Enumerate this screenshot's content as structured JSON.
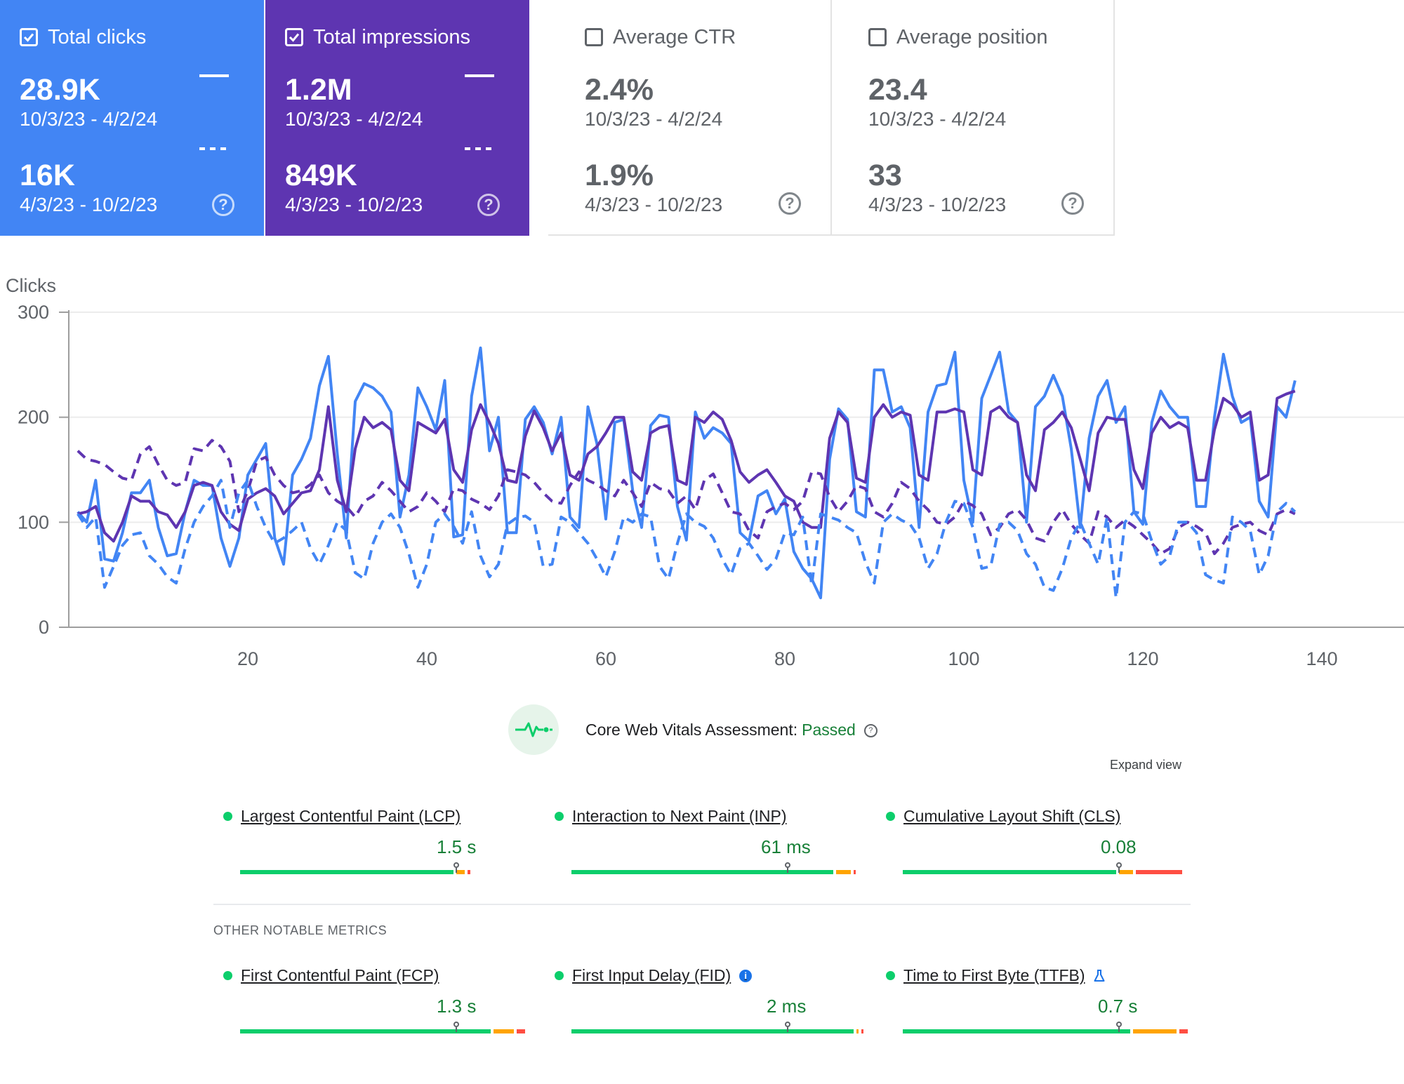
{
  "cards": [
    {
      "label": "Total clicks",
      "selected": true,
      "color": "#4285f4",
      "value_current": "28.9K",
      "range_current": "10/3/23 - 4/2/24",
      "value_previous": "16K",
      "range_previous": "4/3/23 - 10/2/23"
    },
    {
      "label": "Total impressions",
      "selected": true,
      "color": "#5e35b1",
      "value_current": "1.2M",
      "range_current": "10/3/23 - 4/2/24",
      "value_previous": "849K",
      "range_previous": "4/3/23 - 10/2/23"
    },
    {
      "label": "Average CTR",
      "selected": false,
      "color": "#ffffff",
      "value_current": "2.4%",
      "range_current": "10/3/23 - 4/2/24",
      "value_previous": "1.9%",
      "range_previous": "4/3/23 - 10/2/23"
    },
    {
      "label": "Average position",
      "selected": false,
      "color": "#ffffff",
      "value_current": "23.4",
      "range_current": "10/3/23 - 4/2/24",
      "value_previous": "33",
      "range_previous": "4/3/23 - 10/2/23"
    }
  ],
  "chart_data": {
    "type": "line",
    "ylabel": "Clicks",
    "ylim": [
      0,
      300
    ],
    "yticks": [
      0,
      100,
      200,
      300
    ],
    "xticks": [
      20,
      40,
      60,
      80,
      100,
      120,
      140
    ],
    "xlim": [
      0,
      150
    ],
    "grid": true,
    "series": [
      {
        "color": "#4285f4",
        "style": "solid",
        "values": [
          110,
          100,
          140,
          65,
          63,
          90,
          128,
          128,
          140,
          95,
          68,
          70,
          110,
          140,
          135,
          135,
          85,
          58,
          85,
          145,
          160,
          175,
          85,
          60,
          145,
          160,
          180,
          230,
          258,
          165,
          85,
          215,
          232,
          228,
          220,
          205,
          105,
          145,
          228,
          210,
          188,
          235,
          86,
          88,
          220,
          266,
          168,
          200,
          90,
          90,
          198,
          210,
          195,
          165,
          200,
          105,
          95,
          210,
          175,
          103,
          195,
          198,
          130,
          95,
          192,
          202,
          200,
          115,
          83,
          205,
          180,
          190,
          185,
          175,
          90,
          82,
          125,
          130,
          108,
          122,
          72,
          56,
          46,
          28,
          160,
          208,
          198,
          110,
          105,
          245,
          245,
          205,
          210,
          190,
          95,
          205,
          230,
          232,
          262,
          140,
          100,
          218,
          240,
          262,
          205,
          195,
          100,
          210,
          220,
          240,
          220,
          170,
          95,
          180,
          220,
          235,
          195,
          210,
          110,
          98,
          195,
          225,
          210,
          200,
          200,
          115,
          115,
          200,
          260,
          220,
          195,
          200,
          120,
          105,
          210,
          200,
          235
        ]
      },
      {
        "color": "#5e35b1",
        "style": "solid",
        "values": [
          108,
          110,
          115,
          90,
          82,
          100,
          125,
          120,
          120,
          110,
          107,
          95,
          110,
          135,
          138,
          135,
          110,
          98,
          92,
          122,
          128,
          132,
          125,
          108,
          118,
          128,
          130,
          150,
          210,
          140,
          110,
          170,
          200,
          190,
          195,
          188,
          140,
          130,
          195,
          190,
          185,
          198,
          150,
          138,
          188,
          212,
          195,
          175,
          140,
          138,
          182,
          206,
          190,
          168,
          185,
          145,
          140,
          165,
          172,
          185,
          200,
          200,
          148,
          140,
          185,
          190,
          192,
          140,
          136,
          200,
          195,
          205,
          198,
          178,
          148,
          138,
          145,
          150,
          138,
          125,
          120,
          100,
          95,
          95,
          180,
          205,
          195,
          142,
          138,
          200,
          212,
          200,
          205,
          202,
          145,
          140,
          205,
          205,
          208,
          205,
          150,
          145,
          205,
          210,
          200,
          195,
          145,
          130,
          188,
          195,
          205,
          190,
          160,
          130,
          185,
          200,
          198,
          198,
          150,
          132,
          185,
          200,
          190,
          195,
          190,
          140,
          140,
          188,
          218,
          212,
          200,
          205,
          140,
          145,
          218,
          222,
          225
        ]
      },
      {
        "color": "#5e35b1",
        "style": "dashed",
        "values": [
          168,
          160,
          158,
          155,
          148,
          142,
          140,
          165,
          172,
          155,
          140,
          135,
          138,
          170,
          168,
          178,
          172,
          158,
          110,
          130,
          158,
          162,
          145,
          135,
          128,
          130,
          136,
          145,
          128,
          120,
          115,
          105,
          120,
          125,
          138,
          130,
          120,
          110,
          115,
          128,
          120,
          110,
          132,
          130,
          122,
          118,
          112,
          125,
          150,
          148,
          145,
          138,
          128,
          120,
          118,
          135,
          148,
          140,
          136,
          130,
          125,
          140,
          128,
          115,
          138,
          132,
          130,
          118,
          125,
          112,
          140,
          146,
          128,
          110,
          108,
          92,
          85,
          110,
          115,
          118,
          112,
          120,
          148,
          146,
          124,
          110,
          120,
          135,
          132,
          110,
          105,
          118,
          138,
          132,
          120,
          112,
          100,
          98,
          105,
          120,
          116,
          108,
          88,
          95,
          108,
          112,
          102,
          85,
          82,
          100,
          112,
          98,
          88,
          80,
          110,
          105,
          95,
          102,
          96,
          88,
          80,
          70,
          75,
          95,
          100,
          96,
          90,
          70,
          80,
          95,
          98,
          100,
          92,
          88,
          108,
          112,
          108
        ]
      },
      {
        "color": "#4285f4",
        "style": "dashed",
        "values": [
          108,
          95,
          105,
          38,
          58,
          78,
          88,
          90,
          68,
          60,
          48,
          42,
          75,
          100,
          115,
          125,
          140,
          95,
          128,
          140,
          115,
          95,
          80,
          85,
          92,
          100,
          75,
          60,
          78,
          100,
          92,
          52,
          46,
          80,
          100,
          108,
          95,
          70,
          38,
          60,
          100,
          108,
          96,
          80,
          110,
          68,
          48,
          60,
          98,
          104,
          106,
          100,
          58,
          60,
          105,
          100,
          90,
          80,
          65,
          48,
          72,
          105,
          100,
          108,
          105,
          58,
          46,
          80,
          108,
          100,
          96,
          85,
          65,
          50,
          75,
          80,
          68,
          55,
          65,
          90,
          88,
          105,
          40,
          108,
          105,
          102,
          95,
          90,
          62,
          42,
          100,
          108,
          102,
          98,
          85,
          56,
          70,
          100,
          120,
          118,
          95,
          56,
          58,
          98,
          100,
          92,
          70,
          60,
          38,
          35,
          56,
          85,
          100,
          80,
          60,
          105,
          28,
          100,
          110,
          108,
          82,
          60,
          68,
          100,
          100,
          90,
          50,
          45,
          42,
          105,
          100,
          92,
          50,
          68,
          110,
          118,
          110
        ]
      }
    ]
  },
  "cwv": {
    "title": "Core Web Vitals Assessment:",
    "status": "Passed",
    "expand_label": "Expand view",
    "other_label": "OTHER NOTABLE METRICS",
    "metrics": [
      {
        "name": "Largest Contentful Paint (LCP)",
        "value": "1.5 s",
        "good_pct": 0.75,
        "ni_pct": 0.04,
        "poor_pct": 0.02,
        "marker_pct": 0.75
      },
      {
        "name": "Interaction to Next Paint (INP)",
        "value": "61 ms",
        "good_pct": 0.92,
        "ni_pct": 0.06,
        "poor_pct": 0.01,
        "marker_pct": 0.75
      },
      {
        "name": "Cumulative Layout Shift (CLS)",
        "value": "0.08",
        "good_pct": 0.75,
        "ni_pct": 0.06,
        "poor_pct": 0.17,
        "marker_pct": 0.75
      },
      {
        "name": "First Contentful Paint (FCP)",
        "value": "1.3 s",
        "good_pct": 0.88,
        "ni_pct": 0.08,
        "poor_pct": 0.04,
        "marker_pct": 0.75
      },
      {
        "name": "First Input Delay (FID)",
        "value": "2 ms",
        "good_pct": 0.99,
        "ni_pct": 0.005,
        "poor_pct": 0.005,
        "marker_pct": 0.75
      },
      {
        "name": "Time to First Byte (TTFB)",
        "value": "0.7 s",
        "good_pct": 0.8,
        "ni_pct": 0.16,
        "poor_pct": 0.04,
        "marker_pct": 0.75
      }
    ],
    "colors": {
      "good": "#0cce6b",
      "ni": "#ffa400",
      "poor": "#ff4e42",
      "text_good": "#188038"
    }
  }
}
